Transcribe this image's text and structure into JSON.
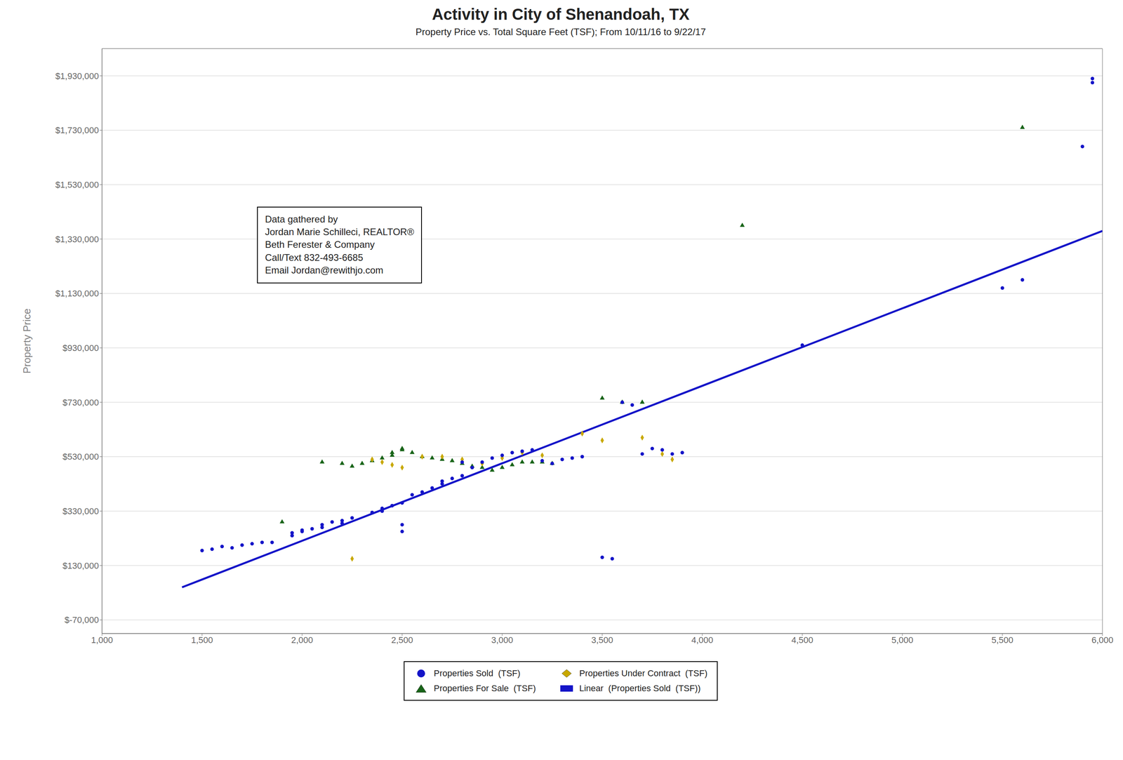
{
  "chart_data": {
    "type": "scatter",
    "title": "Activity in City of Shenandoah, TX",
    "subtitle": "Property Price vs. Total Square Feet (TSF); From 10/11/16 to 9/22/17",
    "ylabel": "Property Price",
    "annotation": "Data gathered by\nJordan Marie Schilleci, REALTOR®\nBeth Ferester & Company\nCall/Text 832-493-6685\nEmail Jordan@rewithjo.com",
    "xlim": [
      1000,
      6000
    ],
    "ylim": [
      -120000,
      2030000
    ],
    "xticks": [
      {
        "value": 1000,
        "label": "1,000"
      },
      {
        "value": 1500,
        "label": "1,500"
      },
      {
        "value": 2000,
        "label": "2,000"
      },
      {
        "value": 2500,
        "label": "2,500"
      },
      {
        "value": 3000,
        "label": "3,000"
      },
      {
        "value": 3500,
        "label": "3,500"
      },
      {
        "value": 4000,
        "label": "4,000"
      },
      {
        "value": 4500,
        "label": "4,500"
      },
      {
        "value": 5000,
        "label": "5,000"
      },
      {
        "value": 5500,
        "label": "5,500"
      },
      {
        "value": 6000,
        "label": "6,000"
      }
    ],
    "yticks": [
      {
        "value": -70000,
        "label": "$-70,000"
      },
      {
        "value": 130000,
        "label": "$130,000"
      },
      {
        "value": 330000,
        "label": "$330,000"
      },
      {
        "value": 530000,
        "label": "$530,000"
      },
      {
        "value": 730000,
        "label": "$730,000"
      },
      {
        "value": 930000,
        "label": "$930,000"
      },
      {
        "value": 1130000,
        "label": "$1,130,000"
      },
      {
        "value": 1330000,
        "label": "$1,330,000"
      },
      {
        "value": 1530000,
        "label": "$1,530,000"
      },
      {
        "value": 1730000,
        "label": "$1,730,000"
      },
      {
        "value": 1930000,
        "label": "$1,930,000"
      }
    ],
    "grid": true,
    "series": [
      {
        "name": "Properties Sold  (TSF)",
        "type": "scatter",
        "marker": "circle",
        "color": "#1414c8",
        "x": [
          1500,
          1550,
          1600,
          1650,
          1700,
          1750,
          1800,
          1850,
          1950,
          1950,
          2000,
          2000,
          2050,
          2100,
          2100,
          2150,
          2200,
          2200,
          2250,
          2350,
          2400,
          2400,
          2450,
          2500,
          2500,
          2500,
          2550,
          2600,
          2650,
          2700,
          2700,
          2750,
          2800,
          2800,
          2850,
          2900,
          2950,
          3000,
          3050,
          3100,
          3150,
          3200,
          3250,
          3300,
          3350,
          3400,
          3500,
          3550,
          3600,
          3650,
          3700,
          3750,
          3800,
          3850,
          3900,
          4500,
          5500,
          5600,
          5900,
          5950,
          5950
        ],
        "values": [
          185000,
          190000,
          200000,
          195000,
          205000,
          210000,
          215000,
          215000,
          240000,
          250000,
          255000,
          260000,
          265000,
          270000,
          280000,
          290000,
          285000,
          295000,
          305000,
          325000,
          330000,
          340000,
          350000,
          360000,
          255000,
          280000,
          390000,
          400000,
          415000,
          430000,
          440000,
          450000,
          460000,
          510000,
          490000,
          510000,
          525000,
          535000,
          545000,
          550000,
          555000,
          515000,
          505000,
          520000,
          525000,
          530000,
          160000,
          155000,
          730000,
          720000,
          540000,
          560000,
          555000,
          540000,
          545000,
          940000,
          1150000,
          1180000,
          1670000,
          1920000,
          1905000
        ]
      },
      {
        "name": "Properties Under Contract  (TSF)",
        "type": "scatter",
        "marker": "diamond",
        "color": "#c8a800",
        "x": [
          2250,
          2350,
          2400,
          2450,
          2500,
          2600,
          2700,
          2800,
          2900,
          3000,
          3100,
          3200,
          3400,
          3500,
          3700,
          3800,
          3850
        ],
        "values": [
          155000,
          520000,
          510000,
          500000,
          490000,
          530000,
          530000,
          520000,
          505000,
          525000,
          545000,
          535000,
          615000,
          590000,
          600000,
          540000,
          520000
        ]
      },
      {
        "name": "Properties For Sale  (TSF)",
        "type": "scatter",
        "marker": "triangle",
        "color": "#186418",
        "x": [
          1900,
          2100,
          2200,
          2250,
          2300,
          2350,
          2400,
          2450,
          2450,
          2500,
          2500,
          2550,
          2600,
          2650,
          2700,
          2750,
          2800,
          2850,
          2900,
          2950,
          3000,
          3050,
          3100,
          3150,
          3200,
          3250,
          3500,
          3600,
          3700,
          4200,
          5600
        ],
        "values": [
          290000,
          510000,
          505000,
          495000,
          505000,
          515000,
          525000,
          535000,
          545000,
          560000,
          555000,
          545000,
          530000,
          525000,
          520000,
          515000,
          505000,
          495000,
          490000,
          480000,
          490000,
          500000,
          510000,
          510000,
          510000,
          505000,
          745000,
          730000,
          730000,
          1380000,
          1740000
        ]
      },
      {
        "name": "Linear  (Properties Sold  (TSF))",
        "type": "line",
        "color": "#1414c8",
        "x": [
          1400,
          6000
        ],
        "values": [
          50000,
          1360000
        ]
      }
    ]
  }
}
